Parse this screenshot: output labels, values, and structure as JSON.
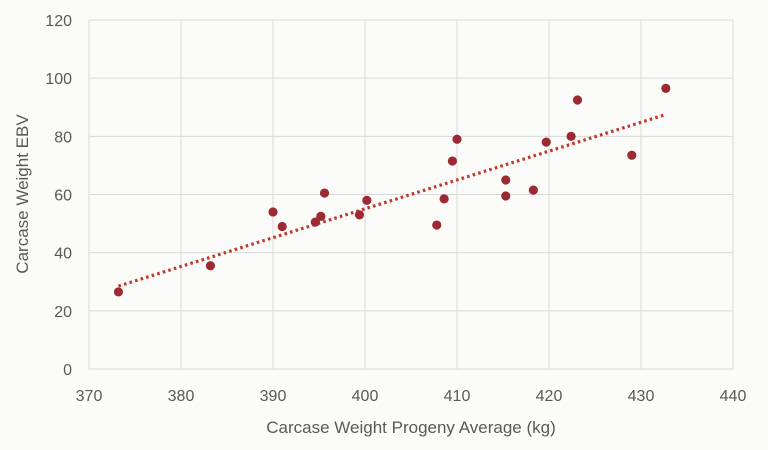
{
  "chart_data": {
    "type": "scatter",
    "title": "",
    "xlabel": "Carcase Weight Progeny Average (kg)",
    "ylabel": "Carcase Weight EBV",
    "xlim": [
      370,
      440
    ],
    "ylim": [
      0,
      120
    ],
    "x_ticks": [
      370,
      380,
      390,
      400,
      410,
      420,
      430,
      440
    ],
    "y_ticks": [
      0,
      20,
      40,
      60,
      80,
      100,
      120
    ],
    "grid": true,
    "legend": "none",
    "series": [
      {
        "marker_color": "#9b2a33",
        "points": [
          {
            "x": 373.2,
            "y": 26.5
          },
          {
            "x": 383.2,
            "y": 35.5
          },
          {
            "x": 390.0,
            "y": 54.0
          },
          {
            "x": 391.0,
            "y": 49.0
          },
          {
            "x": 394.6,
            "y": 50.5
          },
          {
            "x": 395.2,
            "y": 52.5
          },
          {
            "x": 395.6,
            "y": 60.5
          },
          {
            "x": 399.4,
            "y": 53.0
          },
          {
            "x": 400.2,
            "y": 58.0
          },
          {
            "x": 407.8,
            "y": 49.5
          },
          {
            "x": 408.6,
            "y": 58.5
          },
          {
            "x": 409.5,
            "y": 71.5
          },
          {
            "x": 410.0,
            "y": 79.0
          },
          {
            "x": 415.3,
            "y": 59.5
          },
          {
            "x": 415.3,
            "y": 65.0
          },
          {
            "x": 418.3,
            "y": 61.5
          },
          {
            "x": 419.7,
            "y": 78.0
          },
          {
            "x": 422.4,
            "y": 80.0
          },
          {
            "x": 423.1,
            "y": 92.5
          },
          {
            "x": 429.0,
            "y": 73.5
          },
          {
            "x": 432.7,
            "y": 96.5
          }
        ]
      }
    ],
    "trendline": {
      "style": "dotted",
      "color": "#c0392b",
      "x": [
        373.2,
        432.7
      ],
      "y": [
        28.5,
        87.5
      ]
    }
  }
}
